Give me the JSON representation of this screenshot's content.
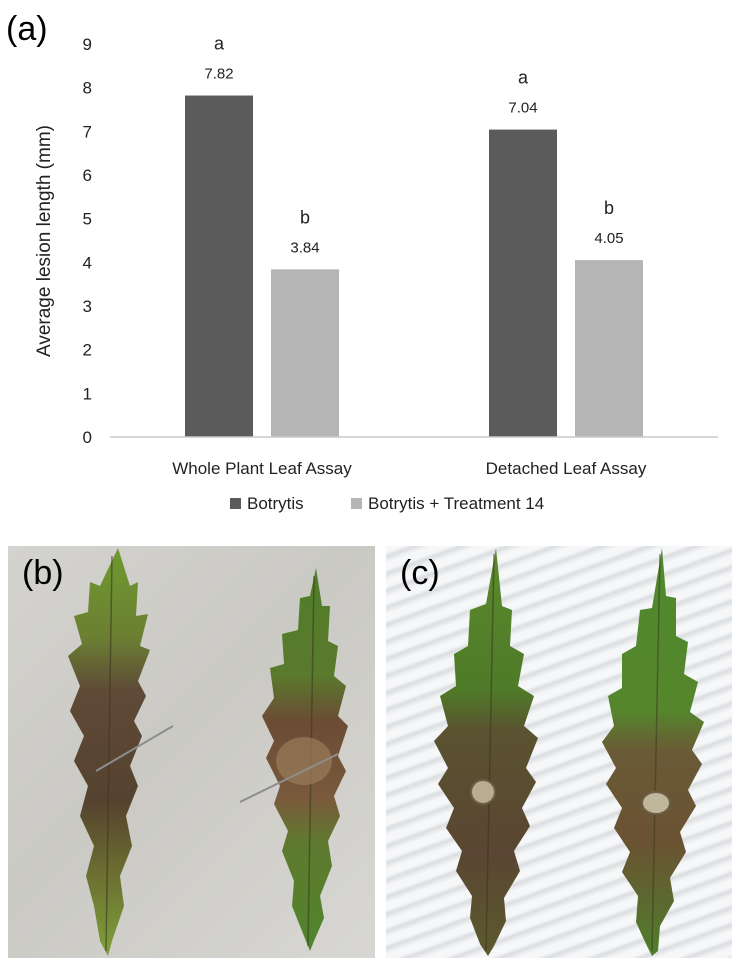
{
  "panels": {
    "a": "(a)",
    "b": "(b)",
    "c": "(c)"
  },
  "chart_data": {
    "type": "bar",
    "categories": [
      "Whole Plant Leaf Assay",
      "Detached Leaf Assay"
    ],
    "series": [
      {
        "name": "Botrytis",
        "values": [
          7.82,
          7.04
        ],
        "data_labels": [
          "7.82",
          "7.04"
        ],
        "significance": [
          "a",
          "a"
        ],
        "color": "#5b5b5b"
      },
      {
        "name": "Botrytis + Treatment 14",
        "values": [
          3.84,
          4.05
        ],
        "data_labels": [
          "3.84",
          "4.05"
        ],
        "significance": [
          "b",
          "b"
        ],
        "color": "#b5b5b5"
      }
    ],
    "ylabel": "Average lesion length (mm)",
    "xlabel": "",
    "ylim": [
      0,
      9
    ],
    "yticks": [
      0,
      1,
      2,
      3,
      4,
      5,
      6,
      7,
      8,
      9
    ],
    "grid": false,
    "legend": "bottom"
  },
  "photos": {
    "b_background": "#cfcecb",
    "c_background": "#eceef0",
    "leaf_green": "#5b8a2a",
    "lesion_brown": "#5e4a36"
  }
}
